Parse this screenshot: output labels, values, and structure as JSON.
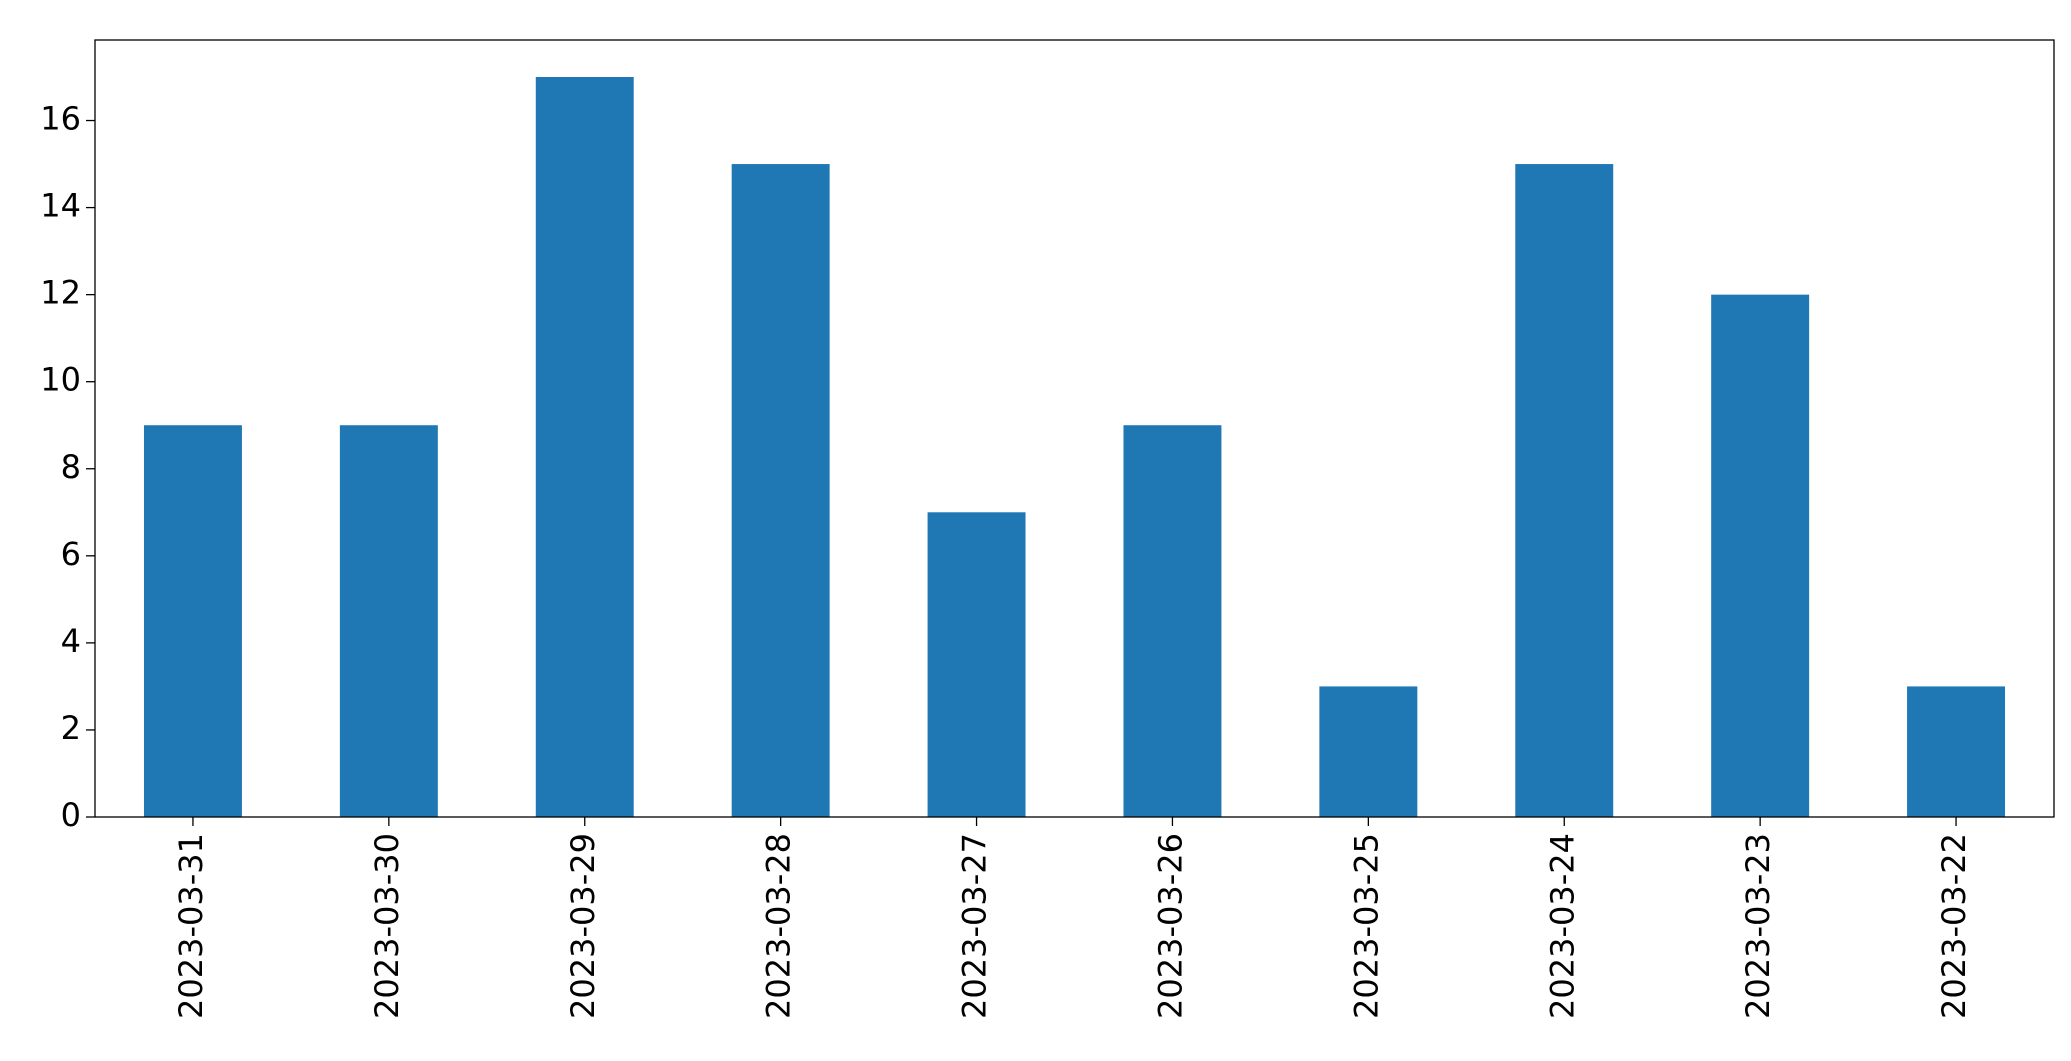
{
  "chart_data": {
    "type": "bar",
    "categories": [
      "2023-03-31",
      "2023-03-30",
      "2023-03-29",
      "2023-03-28",
      "2023-03-27",
      "2023-03-26",
      "2023-03-25",
      "2023-03-24",
      "2023-03-23",
      "2023-03-22"
    ],
    "values": [
      9,
      9,
      17,
      15,
      7,
      9,
      3,
      15,
      12,
      3
    ],
    "color": "#1f77b4",
    "ylim": [
      0,
      17.85
    ],
    "yticks": [
      0,
      2,
      4,
      6,
      8,
      10,
      12,
      14,
      16
    ],
    "grid": false
  }
}
